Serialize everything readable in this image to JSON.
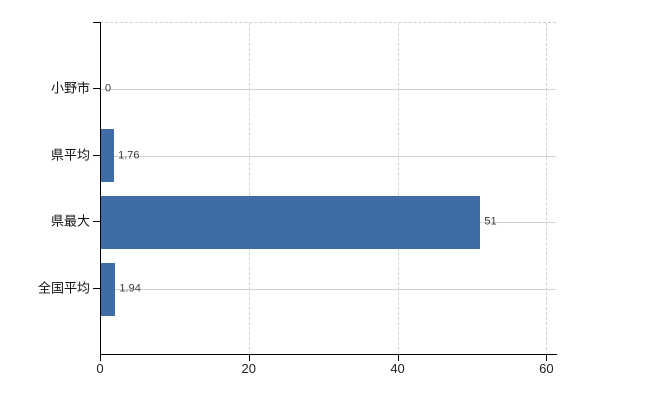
{
  "chart_data": {
    "type": "bar",
    "orientation": "horizontal",
    "title": "",
    "categories": [
      "小野市",
      "県平均",
      "県最大",
      "全国平均"
    ],
    "values": [
      0,
      1.76,
      51,
      1.94
    ],
    "value_labels": [
      "0",
      "1.76",
      "51",
      "1.94"
    ],
    "x_ticks": [
      0,
      20,
      40,
      60
    ],
    "x_tick_labels": [
      "0",
      "20",
      "40",
      "60"
    ],
    "xlim": [
      0,
      61.3
    ],
    "grid": true,
    "legend": "none",
    "bar_color": "#3f6ba6",
    "horizontal_gridline_color": "#ccd5cc",
    "vertical_gridline_color": "#cfcfcf",
    "axis_color": "#000000",
    "background_color": "#ffffff"
  }
}
